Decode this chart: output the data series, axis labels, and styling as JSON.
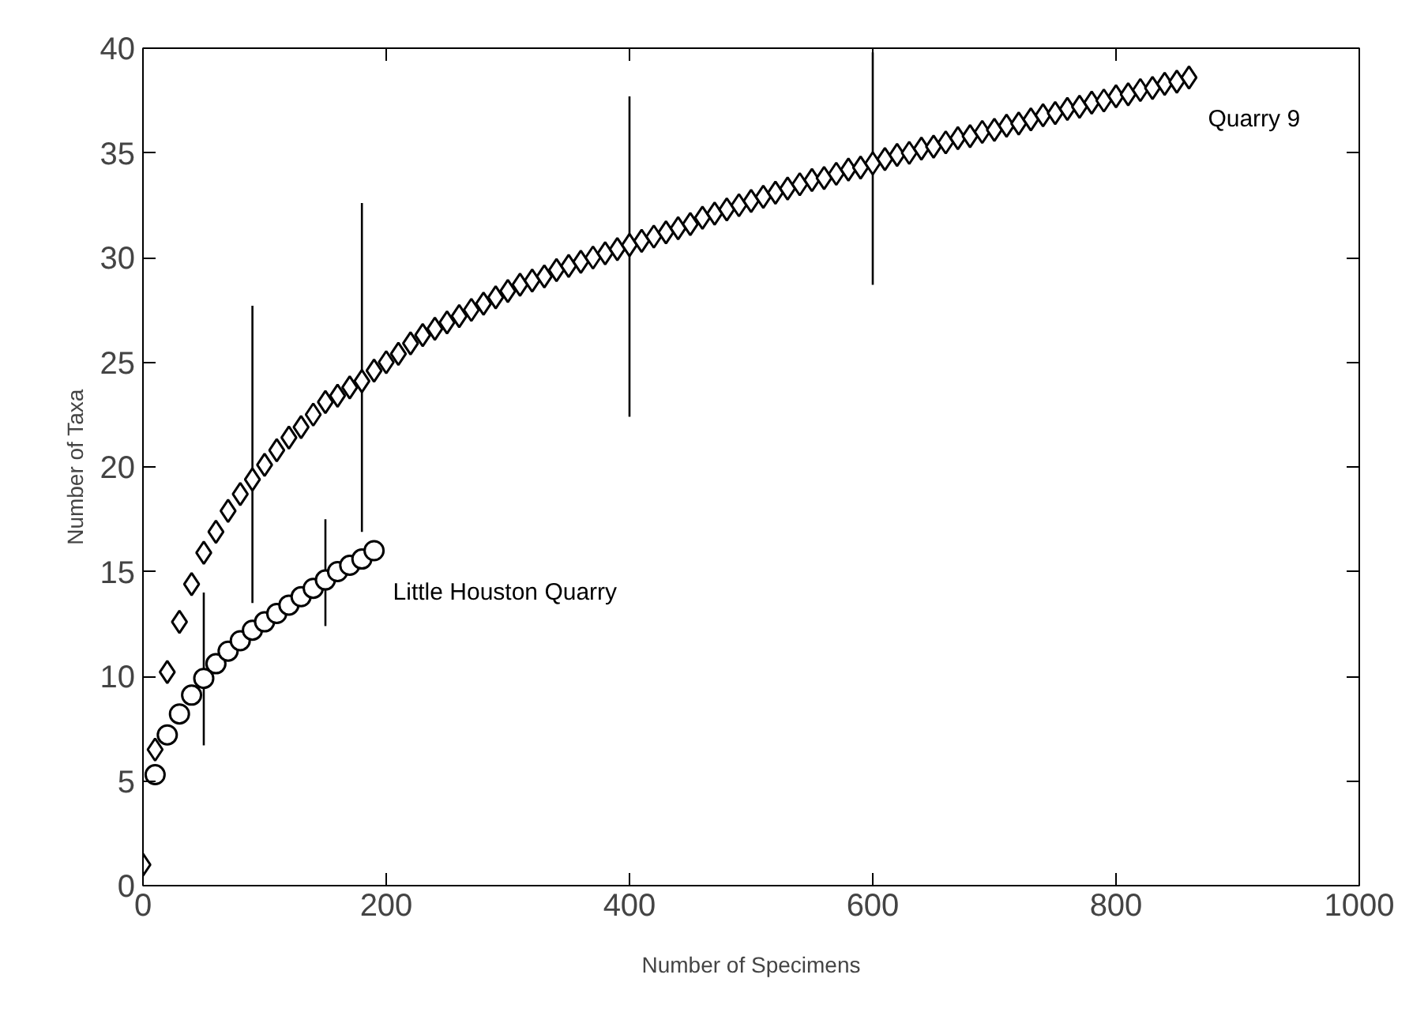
{
  "chart_data": {
    "type": "scatter",
    "xlabel": "Number of Specimens",
    "ylabel": "Number of Taxa",
    "xlim": [
      0,
      1000
    ],
    "xticks": [
      0,
      200,
      400,
      600,
      800,
      1000
    ],
    "ylim": [
      0,
      40
    ],
    "yticks": [
      0,
      5,
      10,
      15,
      20,
      25,
      30,
      35,
      40
    ],
    "grid": false,
    "series": [
      {
        "name": "Quarry 9",
        "color": "#000000",
        "marker": "diamond",
        "x": [
          0,
          10,
          20,
          30,
          40,
          50,
          60,
          70,
          80,
          90,
          100,
          110,
          120,
          130,
          140,
          150,
          160,
          170,
          180,
          190,
          200,
          210,
          220,
          230,
          240,
          250,
          260,
          270,
          280,
          290,
          300,
          310,
          320,
          330,
          340,
          350,
          360,
          370,
          380,
          390,
          400,
          410,
          420,
          430,
          440,
          450,
          460,
          470,
          480,
          490,
          500,
          510,
          520,
          530,
          540,
          550,
          560,
          570,
          580,
          590,
          600,
          610,
          620,
          630,
          640,
          650,
          660,
          670,
          680,
          690,
          700,
          710,
          720,
          730,
          740,
          750,
          760,
          770,
          780,
          790,
          800,
          810,
          820,
          830,
          840,
          850,
          860
        ],
        "values": [
          1,
          6.5,
          10.2,
          12.6,
          14.4,
          15.9,
          16.9,
          17.9,
          18.7,
          19.4,
          20.1,
          20.8,
          21.4,
          21.9,
          22.5,
          23.1,
          23.4,
          23.8,
          24.1,
          24.6,
          25.0,
          25.4,
          25.9,
          26.3,
          26.6,
          26.9,
          27.2,
          27.5,
          27.8,
          28.1,
          28.4,
          28.7,
          28.9,
          29.1,
          29.4,
          29.6,
          29.8,
          30.0,
          30.2,
          30.4,
          30.6,
          30.8,
          31.0,
          31.2,
          31.4,
          31.6,
          31.9,
          32.1,
          32.3,
          32.5,
          32.7,
          32.9,
          33.1,
          33.3,
          33.5,
          33.7,
          33.8,
          34.0,
          34.2,
          34.3,
          34.5,
          34.7,
          34.9,
          35.0,
          35.2,
          35.3,
          35.5,
          35.7,
          35.8,
          36.0,
          36.1,
          36.3,
          36.4,
          36.6,
          36.8,
          36.9,
          37.1,
          37.2,
          37.4,
          37.5,
          37.7,
          37.8,
          38.0,
          38.1,
          38.3,
          38.4,
          38.6
        ],
        "errors": [
          null,
          null,
          null,
          null,
          null,
          null,
          null,
          null,
          null,
          [
            13.5,
            27.7
          ],
          null,
          null,
          null,
          null,
          null,
          null,
          null,
          null,
          [
            16.9,
            32.6
          ],
          null,
          null,
          null,
          null,
          null,
          null,
          null,
          null,
          null,
          null,
          null,
          null,
          null,
          null,
          null,
          null,
          null,
          null,
          null,
          null,
          null,
          [
            22.4,
            37.7
          ],
          null,
          null,
          null,
          null,
          null,
          null,
          null,
          null,
          null,
          null,
          null,
          null,
          null,
          null,
          null,
          null,
          null,
          null,
          null,
          [
            28.7,
            39.8
          ],
          null,
          null,
          null,
          null,
          null,
          null,
          null,
          null,
          null,
          null,
          null,
          null,
          null,
          null,
          null,
          null,
          null,
          null,
          null,
          null,
          null,
          null,
          null,
          null,
          null,
          null
        ]
      },
      {
        "name": "Little Houston Quarry",
        "color": "#000000",
        "marker": "circle",
        "x": [
          10,
          20,
          30,
          40,
          50,
          60,
          70,
          80,
          90,
          100,
          110,
          120,
          130,
          140,
          150,
          160,
          170,
          180,
          190
        ],
        "values": [
          5.3,
          7.2,
          8.2,
          9.1,
          9.9,
          10.6,
          11.2,
          11.7,
          12.2,
          12.6,
          13.0,
          13.4,
          13.8,
          14.2,
          14.6,
          15.0,
          15.3,
          15.6,
          16.0
        ],
        "errors": [
          null,
          null,
          null,
          null,
          [
            6.7,
            14.0
          ],
          null,
          null,
          null,
          null,
          null,
          null,
          null,
          null,
          null,
          [
            12.4,
            17.5
          ],
          null,
          null,
          null,
          null
        ]
      }
    ]
  }
}
